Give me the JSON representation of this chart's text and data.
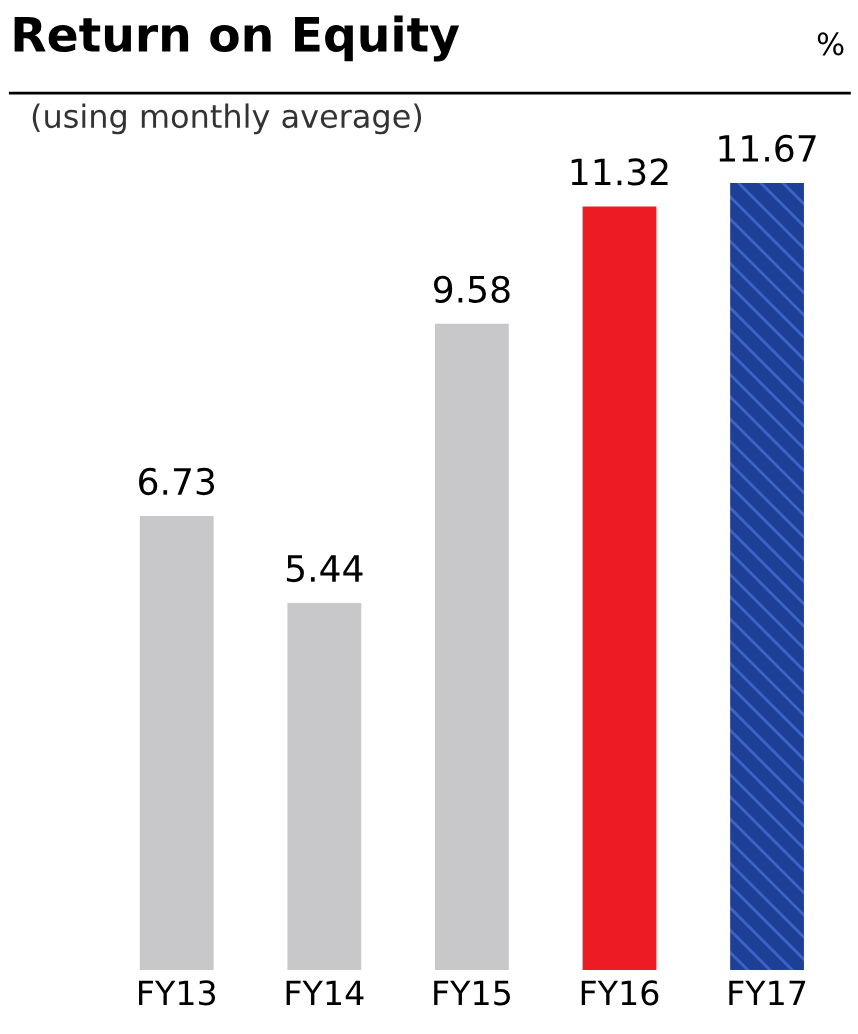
{
  "chart_data": {
    "type": "bar",
    "title": "Return on Equity",
    "subtitle": "(using monthly average)",
    "annotations": [
      "%"
    ],
    "categories": [
      "FY13",
      "FY14",
      "FY15",
      "FY16",
      "FY17"
    ],
    "values": [
      6.73,
      5.44,
      9.58,
      11.32,
      11.67
    ],
    "colors": [
      "#c8c8ca",
      "#c8c8ca",
      "#c8c8ca",
      "#ed1c24",
      "#1d3f96"
    ],
    "data_labels": true,
    "tick_labels": "x"
  }
}
